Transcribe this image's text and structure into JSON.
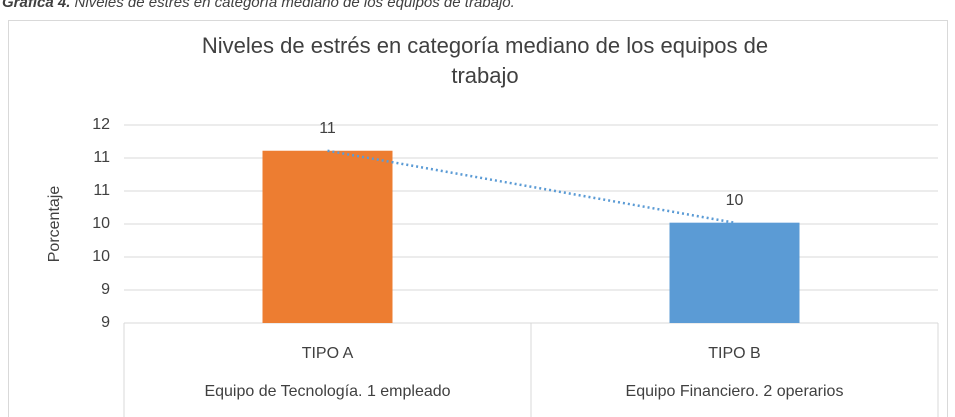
{
  "caption": {
    "label": "Gráfica 4.",
    "text": "Niveles de estrés en categoría mediano de los equipos de trabajo."
  },
  "chart_data": {
    "type": "bar",
    "title": "Niveles de estrés en categoría  mediano de los equipos de trabajo",
    "y_label": "Porcentaje",
    "categories": [
      "TIPO A",
      "TIPO B"
    ],
    "subcategories": [
      "Equipo de Tecnología. 1 empleado",
      "Equipo Financiero. 2 operarios"
    ],
    "values": [
      11.36,
      10.27
    ],
    "value_labels": [
      "11",
      "10"
    ],
    "colors": [
      "#ED7D31",
      "#5B9BD5"
    ],
    "trendline": true,
    "ylim": [
      8.75,
      11.75
    ],
    "yticks": [
      {
        "value": 8.75,
        "label": "9"
      },
      {
        "value": 9.25,
        "label": "9"
      },
      {
        "value": 9.75,
        "label": "10"
      },
      {
        "value": 10.25,
        "label": "10"
      },
      {
        "value": 10.75,
        "label": "11"
      },
      {
        "value": 11.25,
        "label": "11"
      },
      {
        "value": 11.75,
        "label": "12"
      }
    ],
    "grid": true
  }
}
